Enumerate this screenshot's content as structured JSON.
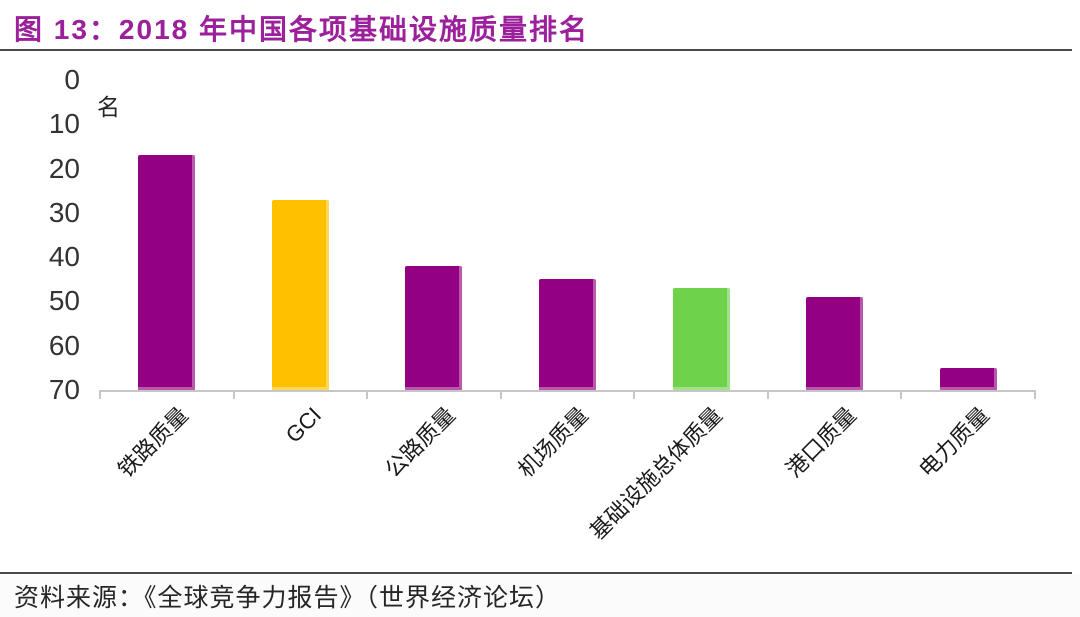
{
  "figure": {
    "title": "图 13：2018 年中国各项基础设施质量排名",
    "source": "资料来源：《全球竞争力报告》（世界经济论坛）"
  },
  "chart_data": {
    "type": "bar",
    "title": "2018 年中国各项基础设施质量排名",
    "unit": "名",
    "ylabel": "名",
    "xlabel": "",
    "categories": [
      "铁路质量",
      "GCI",
      "公路质量",
      "机场质量",
      "基础设施总体质量",
      "港口质量",
      "电力质量"
    ],
    "values": [
      17,
      27,
      42,
      45,
      47,
      49,
      65
    ],
    "bar_colors": [
      "#930082",
      "#FFC000",
      "#930082",
      "#930082",
      "#6FD24B",
      "#930082",
      "#930082"
    ],
    "ylim": [
      0,
      70
    ],
    "y_ticks": [
      0,
      10,
      20,
      30,
      40,
      50,
      60,
      70
    ],
    "y_axis_inverted": true,
    "grid": false,
    "legend_position": "none"
  },
  "colors": {
    "title_text": "#9C1F9C",
    "bar_purple": "#930082",
    "bar_yellow": "#FFC000",
    "bar_green": "#6FD24B",
    "axis_line": "#C6C6C6",
    "divider_rule": "#4A4A4A",
    "tick_text": "#333333",
    "category_text": "#1A1A1A"
  }
}
